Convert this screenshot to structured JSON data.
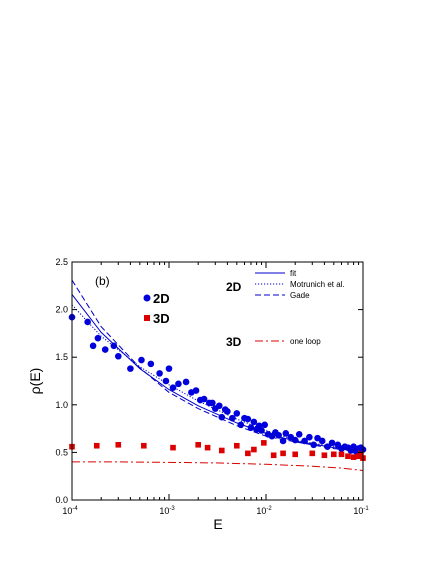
{
  "chart_data": {
    "type": "scatter",
    "panel_label": "(b)",
    "xlabel": "E",
    "ylabel": "ρ(E)",
    "xscale": "log",
    "xlim": [
      0.0001,
      0.1
    ],
    "ylim": [
      0,
      2.5
    ],
    "x_ticks": [
      {
        "value": 0.0001,
        "base": "10",
        "exp": "-4"
      },
      {
        "value": 0.001,
        "base": "10",
        "exp": "-3"
      },
      {
        "value": 0.01,
        "base": "10",
        "exp": "-2"
      },
      {
        "value": 0.1,
        "base": "10",
        "exp": "-1"
      }
    ],
    "y_ticks": [
      "0.0",
      "0.5",
      "1.0",
      "1.5",
      "2.0",
      "2.5"
    ],
    "legend_placement": "top-right",
    "marker_legend": [
      {
        "label": "2D",
        "color": "#0000dd",
        "marker": "circle"
      },
      {
        "label": "3D",
        "color": "#dd0000",
        "marker": "square"
      }
    ],
    "line_legend_groups": [
      {
        "group": "2D",
        "entries": [
          {
            "label": "fit",
            "style": "solid",
            "color": "#0000cc"
          },
          {
            "label": "Motrunich et al.",
            "style": "dotted",
            "color": "#0000cc"
          },
          {
            "label": "Gade",
            "style": "dashed",
            "color": "#0000cc"
          }
        ]
      },
      {
        "group": "3D",
        "entries": [
          {
            "label": "one loop",
            "style": "dashdot",
            "color": "#dd0000"
          }
        ]
      }
    ],
    "series": [
      {
        "name": "2D",
        "kind": "points",
        "marker": "circle",
        "color": "#0000dd",
        "points": [
          [
            0.0001,
            1.92
          ],
          [
            0.000145,
            1.87
          ],
          [
            0.000165,
            1.62
          ],
          [
            0.000185,
            1.7
          ],
          [
            0.00022,
            1.58
          ],
          [
            0.00027,
            1.62
          ],
          [
            0.0003,
            1.51
          ],
          [
            0.0004,
            1.38
          ],
          [
            0.00052,
            1.47
          ],
          [
            0.00065,
            1.43
          ],
          [
            0.0008,
            1.33
          ],
          [
            0.00093,
            1.25
          ],
          [
            0.001,
            1.38
          ],
          [
            0.0011,
            1.18
          ],
          [
            0.00125,
            1.22
          ],
          [
            0.0015,
            1.24
          ],
          [
            0.0017,
            1.13
          ],
          [
            0.0019,
            1.15
          ],
          [
            0.0021,
            1.05
          ],
          [
            0.0023,
            1.06
          ],
          [
            0.0026,
            1.02
          ],
          [
            0.0028,
            1.02
          ],
          [
            0.003,
            0.96
          ],
          [
            0.0033,
            0.99
          ],
          [
            0.0035,
            0.87
          ],
          [
            0.0038,
            0.95
          ],
          [
            0.004,
            0.93
          ],
          [
            0.0045,
            0.86
          ],
          [
            0.005,
            0.91
          ],
          [
            0.0055,
            0.79
          ],
          [
            0.006,
            0.86
          ],
          [
            0.0065,
            0.85
          ],
          [
            0.007,
            0.76
          ],
          [
            0.0075,
            0.82
          ],
          [
            0.008,
            0.74
          ],
          [
            0.0085,
            0.78
          ],
          [
            0.009,
            0.73
          ],
          [
            0.0097,
            0.79
          ],
          [
            0.0105,
            0.69
          ],
          [
            0.0115,
            0.67
          ],
          [
            0.0125,
            0.71
          ],
          [
            0.0135,
            0.68
          ],
          [
            0.015,
            0.62
          ],
          [
            0.016,
            0.7
          ],
          [
            0.018,
            0.66
          ],
          [
            0.02,
            0.63
          ],
          [
            0.022,
            0.69
          ],
          [
            0.025,
            0.62
          ],
          [
            0.028,
            0.66
          ],
          [
            0.031,
            0.58
          ],
          [
            0.034,
            0.65
          ],
          [
            0.038,
            0.62
          ],
          [
            0.043,
            0.56
          ],
          [
            0.048,
            0.6
          ],
          [
            0.055,
            0.58
          ],
          [
            0.06,
            0.54
          ],
          [
            0.065,
            0.56
          ],
          [
            0.07,
            0.55
          ],
          [
            0.075,
            0.52
          ],
          [
            0.08,
            0.56
          ],
          [
            0.085,
            0.51
          ],
          [
            0.09,
            0.54
          ],
          [
            0.095,
            0.55
          ],
          [
            0.1,
            0.53
          ]
        ]
      },
      {
        "name": "3D",
        "kind": "points",
        "marker": "square",
        "color": "#dd0000",
        "points": [
          [
            0.0001,
            0.56
          ],
          [
            0.00018,
            0.57
          ],
          [
            0.0003,
            0.58
          ],
          [
            0.00055,
            0.57
          ],
          [
            0.0011,
            0.55
          ],
          [
            0.002,
            0.58
          ],
          [
            0.0025,
            0.55
          ],
          [
            0.0035,
            0.52
          ],
          [
            0.005,
            0.57
          ],
          [
            0.0065,
            0.49
          ],
          [
            0.0075,
            0.53
          ],
          [
            0.0095,
            0.6
          ],
          [
            0.012,
            0.47
          ],
          [
            0.015,
            0.49
          ],
          [
            0.02,
            0.48
          ],
          [
            0.03,
            0.49
          ],
          [
            0.04,
            0.47
          ],
          [
            0.05,
            0.48
          ],
          [
            0.06,
            0.48
          ],
          [
            0.07,
            0.46
          ],
          [
            0.08,
            0.45
          ],
          [
            0.09,
            0.46
          ],
          [
            0.095,
            0.49
          ],
          [
            0.1,
            0.44
          ]
        ]
      },
      {
        "name": "fit",
        "kind": "line",
        "style": "solid",
        "color": "#0000cc",
        "points": [
          [
            0.0001,
            2.16
          ],
          [
            0.0002,
            1.76
          ],
          [
            0.0005,
            1.38
          ],
          [
            0.001,
            1.16
          ],
          [
            0.002,
            0.99
          ],
          [
            0.005,
            0.81
          ],
          [
            0.01,
            0.7
          ],
          [
            0.02,
            0.62
          ],
          [
            0.05,
            0.55
          ],
          [
            0.1,
            0.52
          ]
        ]
      },
      {
        "name": "Motrunich et al.",
        "kind": "line",
        "style": "dotted",
        "color": "#0000cc",
        "points": [
          [
            0.0001,
            2.05
          ],
          [
            0.0002,
            1.72
          ],
          [
            0.0005,
            1.4
          ],
          [
            0.001,
            1.21
          ],
          [
            0.002,
            1.04
          ],
          [
            0.005,
            0.85
          ],
          [
            0.01,
            0.73
          ],
          [
            0.02,
            0.63
          ],
          [
            0.05,
            0.56
          ],
          [
            0.1,
            0.53
          ]
        ]
      },
      {
        "name": "Gade",
        "kind": "line",
        "style": "dashed",
        "color": "#0000cc",
        "points": [
          [
            0.0001,
            2.31
          ],
          [
            0.0002,
            1.82
          ],
          [
            0.0005,
            1.39
          ],
          [
            0.001,
            1.13
          ],
          [
            0.002,
            0.96
          ],
          [
            0.005,
            0.78
          ],
          [
            0.01,
            0.67
          ],
          [
            0.02,
            0.61
          ],
          [
            0.05,
            0.54
          ],
          [
            0.1,
            0.51
          ]
        ]
      },
      {
        "name": "one loop",
        "kind": "line",
        "style": "dashdot",
        "color": "#dd0000",
        "points": [
          [
            0.0001,
            0.4
          ],
          [
            0.0003,
            0.4
          ],
          [
            0.001,
            0.395
          ],
          [
            0.003,
            0.39
          ],
          [
            0.01,
            0.375
          ],
          [
            0.03,
            0.355
          ],
          [
            0.06,
            0.335
          ],
          [
            0.1,
            0.31
          ]
        ]
      }
    ]
  }
}
